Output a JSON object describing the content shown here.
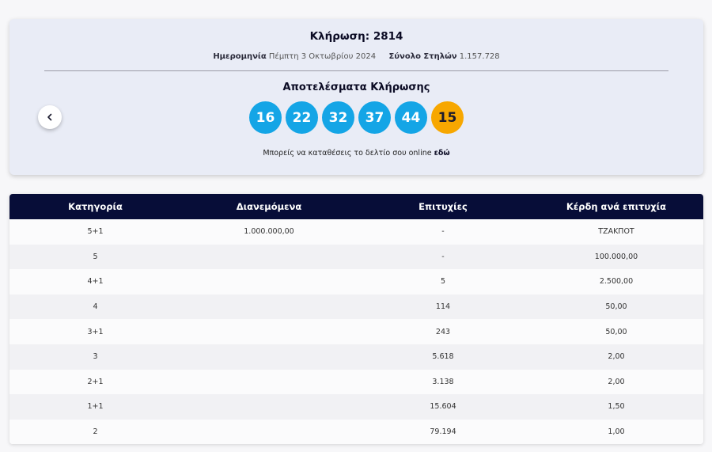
{
  "draw": {
    "title": "Κλήρωση: 2814",
    "date_label": "Ημερομηνία",
    "date_value": "Πέμπτη 3 Οκτωβρίου 2024",
    "columns_label": "Σύνολο Στηλών",
    "columns_value": "1.157.728",
    "results_title": "Αποτελέσματα Κλήρωσης",
    "numbers": [
      "16",
      "22",
      "32",
      "37",
      "44"
    ],
    "joker": "15",
    "online_text": "Μπορείς να καταθέσεις το δελτίο σου online",
    "online_link": "εδώ"
  },
  "colors": {
    "ball": "#14a5e6",
    "joker": "#f7a700",
    "header": "#070d38"
  },
  "icons": {
    "prev": "chevron-left-icon"
  },
  "table": {
    "headers": [
      "Κατηγορία",
      "Διανεμόμενα",
      "Επιτυχίες",
      "Κέρδη ανά επιτυχία"
    ],
    "rows": [
      [
        "5+1",
        "1.000.000,00",
        "-",
        "ΤΖΑΚΠΟΤ"
      ],
      [
        "5",
        "",
        "-",
        "100.000,00"
      ],
      [
        "4+1",
        "",
        "5",
        "2.500,00"
      ],
      [
        "4",
        "",
        "114",
        "50,00"
      ],
      [
        "3+1",
        "",
        "243",
        "50,00"
      ],
      [
        "3",
        "",
        "5.618",
        "2,00"
      ],
      [
        "2+1",
        "",
        "3.138",
        "2,00"
      ],
      [
        "1+1",
        "",
        "15.604",
        "1,50"
      ],
      [
        "2",
        "",
        "79.194",
        "1,00"
      ]
    ]
  }
}
